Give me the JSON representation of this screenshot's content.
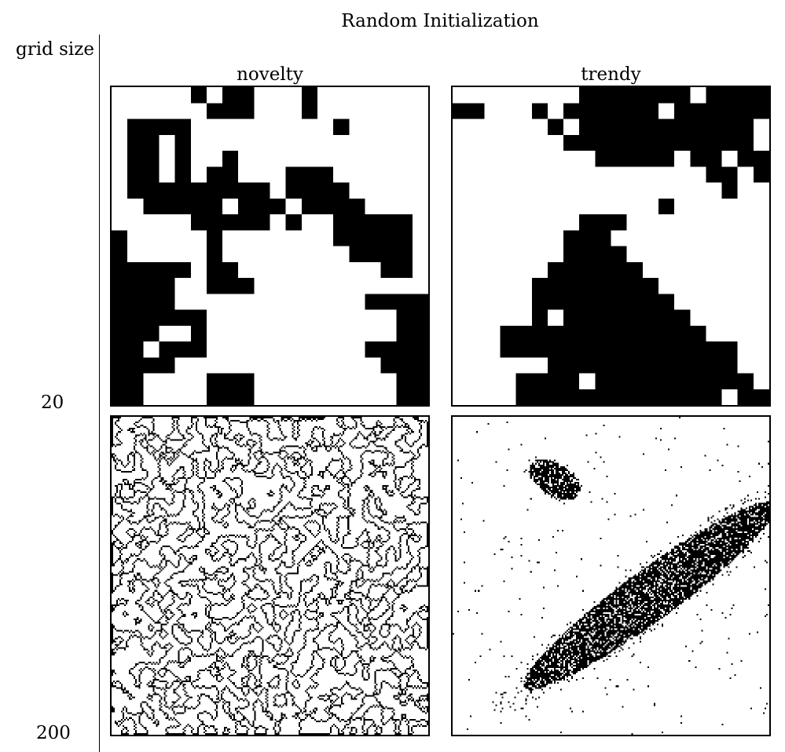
{
  "figure": {
    "title": "Random Initialization",
    "row_axis_label": "grid size",
    "row_labels": [
      "20",
      "200"
    ],
    "column_labels": [
      "novelty",
      "trendy"
    ]
  },
  "panels": [
    {
      "name": "novelty-20",
      "grid_size": 20,
      "rows": [
        "00000101100010000000",
        "00000011100010000000",
        "01111000000000100000",
        "01101000000000000000",
        "01101001000000000000",
        "01101011000111000000",
        "01111111110111100000",
        "00111110111011110000",
        "00000111110100111110",
        "10000010000000111110",
        "10000010000000011110",
        "11111011000000000110",
        "11110011100000000000",
        "11110000000000001111",
        "11111100000000000011",
        "11100100000000000011",
        "11011100000000001111",
        "11110000000000000111",
        "11000011100000000011",
        "11000011100000000011"
      ]
    },
    {
      "name": "trendy-20",
      "grid_size": 20,
      "rows": [
        "00000000111111101111",
        "11000101111110111111",
        "00000010111111111110",
        "00000001111111111110",
        "00000000011111011011",
        "00000000000000001101",
        "00000000000000000100",
        "00000000000001000000",
        "00000000111000000000",
        "00000001110000000000",
        "00000001111000000000",
        "00000011111100000000",
        "00000111111110000000",
        "00000111111111000000",
        "00000101111111100000",
        "00011111111111110000",
        "00011111111111111100",
        "00000011111111111100",
        "00001111011111111110",
        "00001111111111111011"
      ]
    },
    {
      "name": "novelty-200",
      "grid_size": 200,
      "pattern": "fragmented-boundaries"
    },
    {
      "name": "trendy-200",
      "grid_size": 200,
      "pattern": "clustered-blobs"
    }
  ]
}
